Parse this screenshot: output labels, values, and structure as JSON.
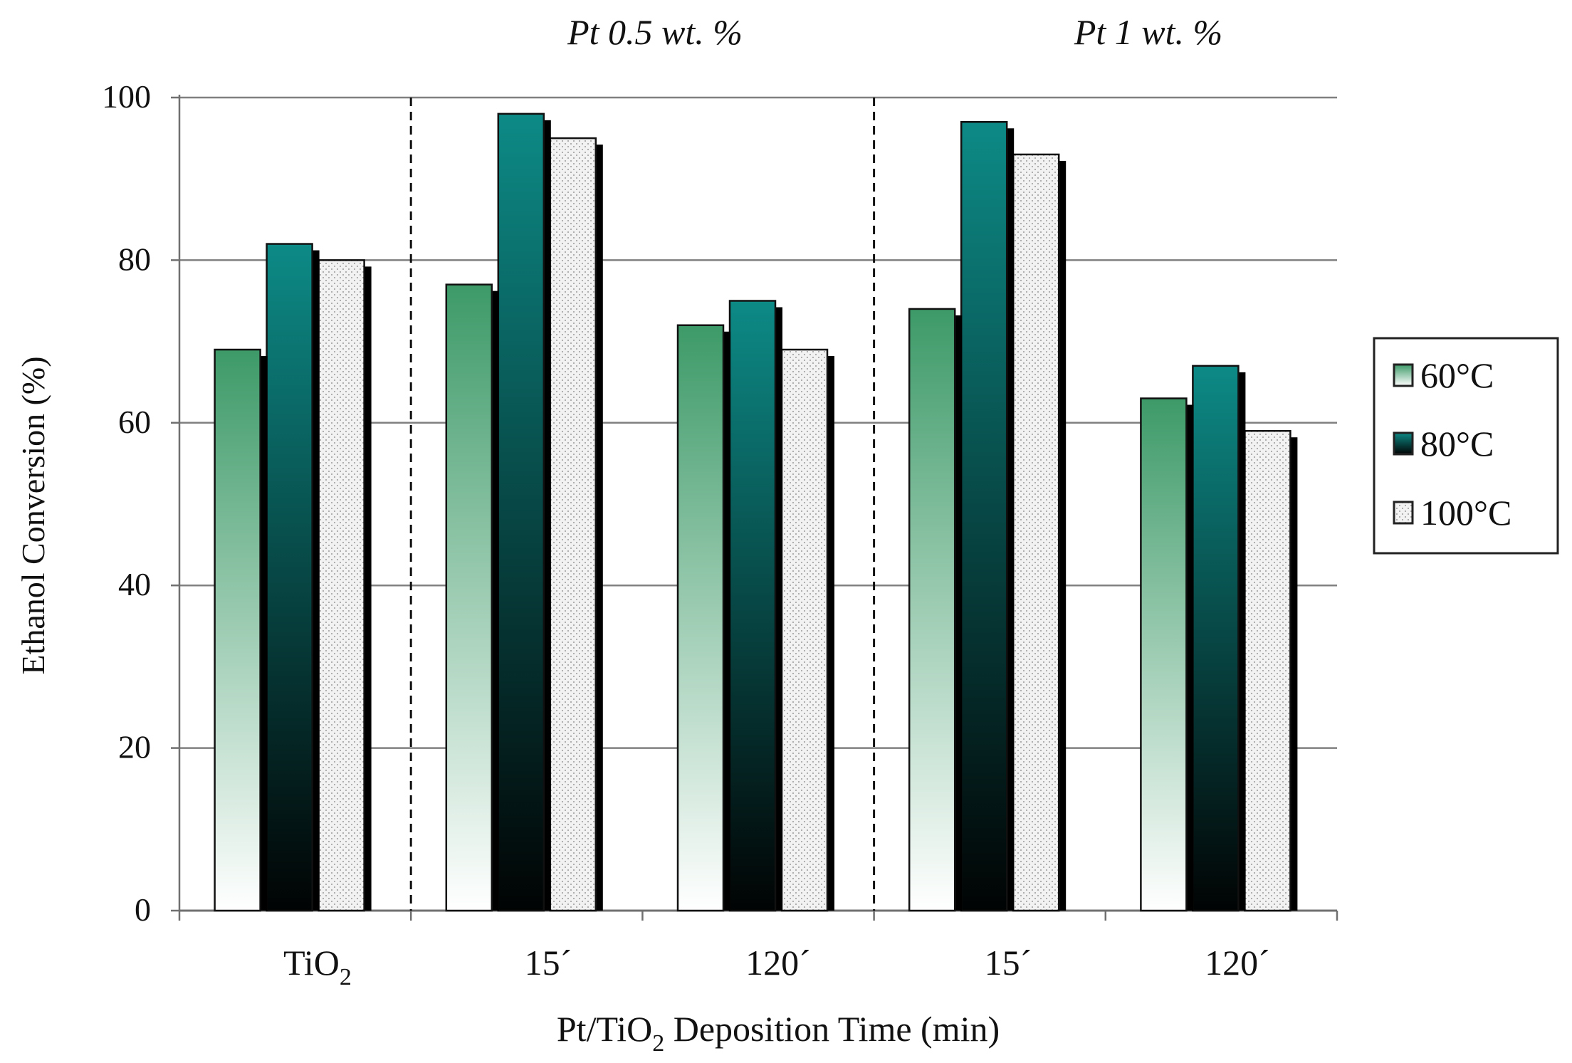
{
  "chart_data": {
    "type": "bar",
    "title": "",
    "group_labels": [
      "Pt 0.5 wt. %",
      "Pt 1 wt. %"
    ],
    "categories": [
      {
        "main": "TiO",
        "sub": "2"
      },
      {
        "main": "15´",
        "sub": ""
      },
      {
        "main": "120´",
        "sub": ""
      },
      {
        "main": "15´",
        "sub": ""
      },
      {
        "main": "120´",
        "sub": ""
      }
    ],
    "series": [
      {
        "name": "60°C",
        "values": [
          69,
          77,
          72,
          74,
          63
        ]
      },
      {
        "name": "80°C",
        "values": [
          82,
          98,
          75,
          97,
          67
        ]
      },
      {
        "name": "100°C",
        "values": [
          80,
          95,
          69,
          93,
          59
        ]
      }
    ],
    "ylabel": "Ethanol Conversion (%)",
    "xlabel": {
      "pre": "Pt/TiO",
      "sub": "2",
      "post": " Deposition Time (min)"
    },
    "ylim": [
      0,
      100
    ],
    "yticks": [
      0,
      20,
      40,
      60,
      80,
      100
    ],
    "grid": true,
    "legend_position": "right",
    "colors": {
      "green_top": "#3d9a68",
      "green_bottom": "#ffffff",
      "teal_top": "#0d8a86",
      "teal_bottom": "#010303",
      "dotted_fill": "#f2f2f2",
      "dot": "#9a9a9a",
      "shadow": "#000000",
      "grid": "#808080",
      "axis": "#707070"
    }
  }
}
